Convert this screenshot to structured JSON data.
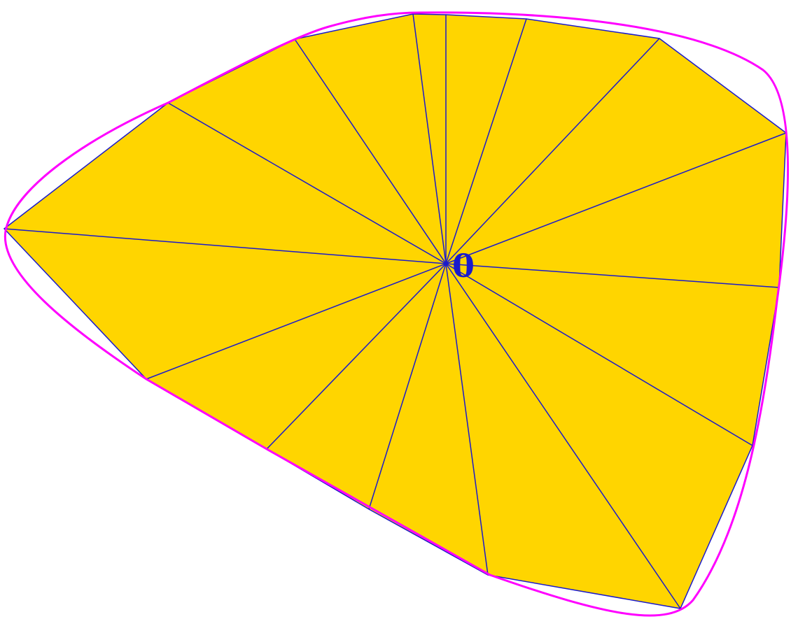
{
  "center_label": "0"
}
